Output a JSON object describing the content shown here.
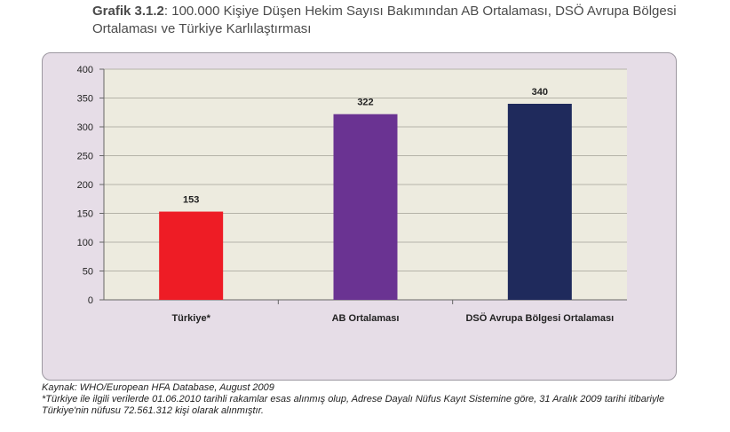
{
  "header": {
    "lead": "Grafik 3.1.2",
    "text": ": 100.000 Kişiye Düşen Hekim Sayısı Bakımından AB Ortalaması, DSÖ Avrupa Bölgesi Ortalaması ve Türkiye Karlılaştırması"
  },
  "footer": {
    "source": "Kaynak: WHO/European HFA Database, August 2009",
    "note": "*Türkiye ile ilgili verilerde 01.06.2010 tarihli rakamlar esas alınmış olup, Adrese Dayalı Nüfus Kayıt Sistemine göre,  31 Aralık 2009 tarihi itibariyle Türkiye'nin nüfusu 72.561.312 kişi olarak alınmıştır."
  },
  "chart_data": {
    "type": "bar",
    "categories": [
      "Türkiye*",
      "AB Ortalaması",
      "DSÖ Avrupa Bölgesi Ortalaması"
    ],
    "values": [
      153,
      322,
      340
    ],
    "value_labels": [
      "153",
      "322",
      "340"
    ],
    "bar_colors": [
      "#ee1c25",
      "#6a3392",
      "#1f2a5c"
    ],
    "ylim": [
      0,
      400
    ],
    "yticks": [
      "0",
      "50",
      "100",
      "150",
      "200",
      "250",
      "300",
      "350",
      "400"
    ],
    "grid": true,
    "plot_background": "#edebdf",
    "panel_background": "#e6dde7"
  }
}
